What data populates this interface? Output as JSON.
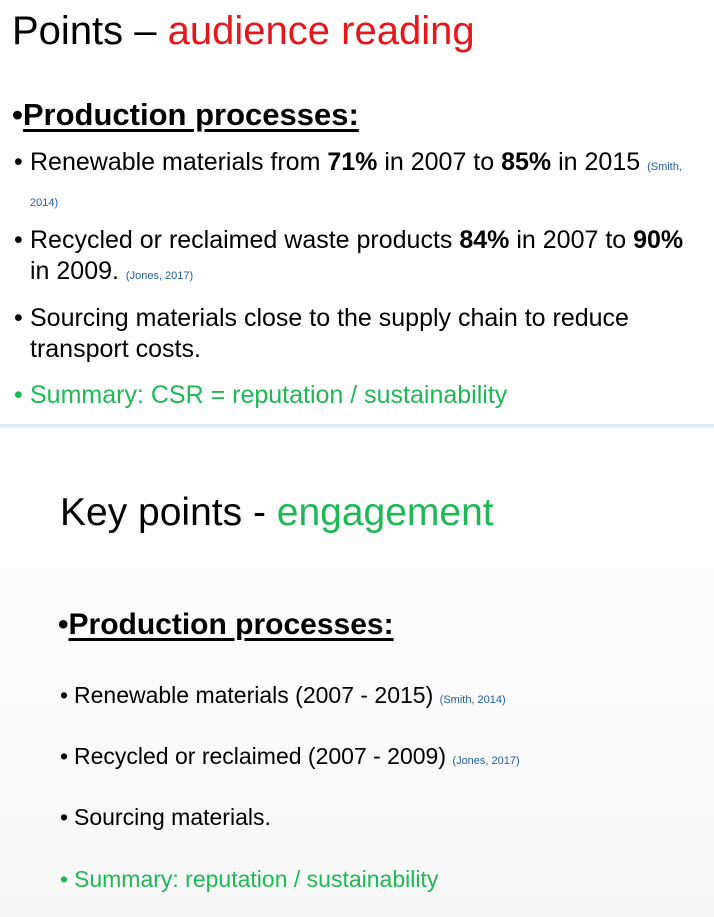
{
  "top_slide": {
    "title_prefix": "Points – ",
    "title_accent": "audience reading",
    "heading_bullet": "•",
    "heading": "Production processes:",
    "bullets": [
      {
        "t1": "Renewable materials from ",
        "b1": "71%",
        "t2": " in 2007 to ",
        "b2": "85%",
        "t3": " in 2015 ",
        "cite": "(Smith, 2014)"
      },
      {
        "t1": "Recycled or reclaimed waste products ",
        "b1": "84%",
        "t2": " in 2007 to ",
        "b2": "90%",
        "t3": " in 2009. ",
        "cite": "(Jones, 2017)"
      },
      {
        "t1": "Sourcing materials close to the supply chain to reduce transport costs."
      },
      {
        "t1": "Summary: CSR = reputation / sustainability"
      }
    ]
  },
  "bottom_slide": {
    "title_prefix": "Key points - ",
    "title_accent": "engagement",
    "heading_bullet": "•",
    "heading": "Production processes:",
    "bullets": [
      {
        "t1": "Renewable materials (2007 - 2015) ",
        "cite": "(Smith, 2014)"
      },
      {
        "t1": "Recycled or reclaimed (2007 - 2009) ",
        "cite": "(Jones, 2017)"
      },
      {
        "t1": "Sourcing materials."
      },
      {
        "t1": "Summary: reputation / sustainability"
      }
    ]
  },
  "bullet_symbol": "•",
  "colors": {
    "title_red": "#e8161b",
    "green": "#1db954",
    "citation_blue": "#1f5fa8"
  }
}
